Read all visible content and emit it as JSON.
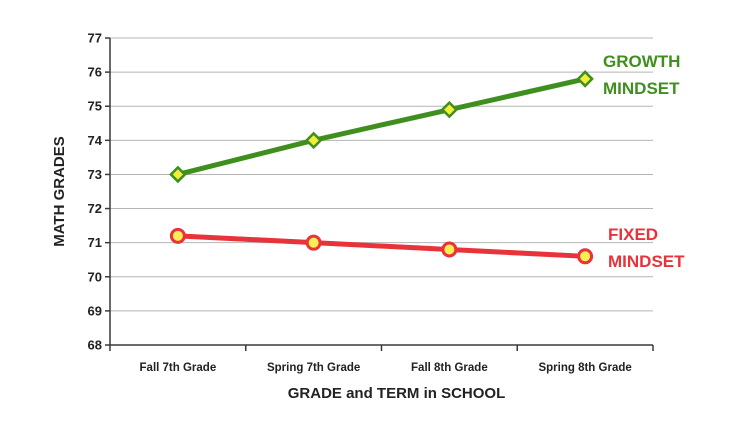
{
  "chart_data": {
    "type": "line",
    "categories": [
      "Fall 7th Grade",
      "Spring 7th Grade",
      "Fall 8th Grade",
      "Spring 8th Grade"
    ],
    "series": [
      {
        "name": "GROWTH MINDSET",
        "values": [
          73.0,
          74.0,
          74.9,
          75.8
        ],
        "color": "#3f8f1f",
        "marker": "diamond",
        "marker_fill": "#f2ee3a"
      },
      {
        "name": "FIXED MINDSET",
        "values": [
          71.2,
          71.0,
          70.8,
          70.6
        ],
        "color": "#e8333a",
        "marker": "circle",
        "marker_fill": "#f7ee54"
      }
    ],
    "title": "",
    "xlabel": "GRADE and TERM in SCHOOL",
    "ylabel": "MATH GRADES",
    "ylim": [
      68,
      77
    ],
    "yticks": [
      "68",
      "69",
      "70",
      "71",
      "72",
      "73",
      "74",
      "75",
      "76",
      "77"
    ],
    "grid": true,
    "series_label_lines": [
      [
        "GROWTH",
        "MINDSET"
      ],
      [
        "FIXED",
        "MINDSET"
      ]
    ]
  }
}
